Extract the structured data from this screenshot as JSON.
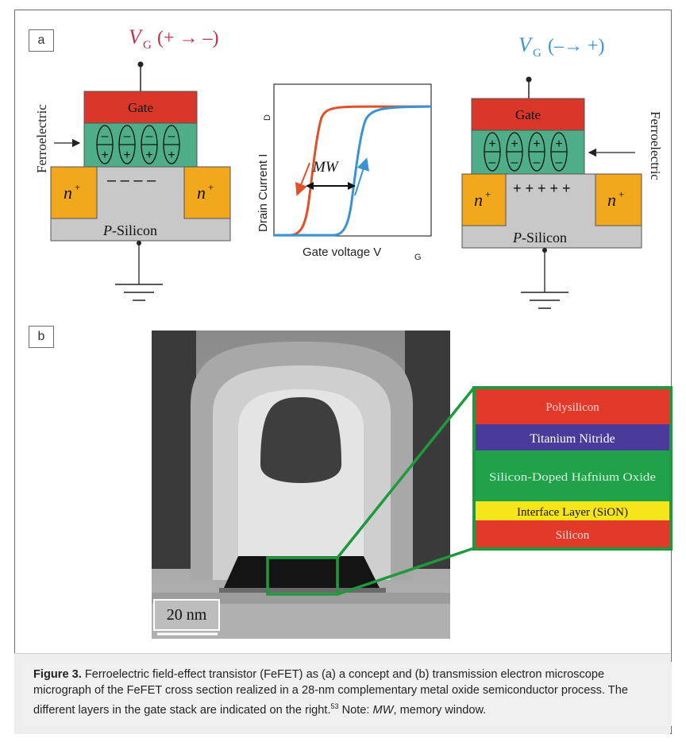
{
  "panel_a": {
    "label": "a",
    "left_device": {
      "vg_label": "(+ → –)",
      "vg_symbol": "V",
      "vg_sub": "G",
      "gate": "Gate",
      "ferroelectric": "Ferroelectric",
      "n_plus": "n",
      "n_sup": "+",
      "substrate_italic": "P",
      "substrate": "-Silicon",
      "charge_row": "–  –  –  –"
    },
    "graph": {
      "ylabel": "Drain Current I",
      "ylabel_sub": "D",
      "xlabel": "Gate voltage V",
      "xlabel_sub": "G",
      "mw": "MW"
    },
    "right_device": {
      "vg_label": "(–→ +)",
      "vg_symbol": "V",
      "vg_sub": "G",
      "gate": "Gate",
      "ferroelectric": "Ferroelectric",
      "n_plus": "n",
      "n_sup": "+",
      "substrate_italic": "P",
      "substrate": "-Silicon",
      "charge_row": "+  +  +  +  +"
    },
    "colors": {
      "gate": "#d8372a",
      "ferro": "#4fae8a",
      "n_region": "#f2a81c",
      "substrate": "#c8c8c8",
      "red_curve": "#e0512a",
      "blue_curve": "#3a93d4",
      "vg_left": "#c0304a",
      "vg_right": "#3a93d4"
    }
  },
  "panel_b": {
    "label": "b",
    "scale_bar": "20 nm",
    "layers": [
      {
        "name": "Polysilicon",
        "color": "#e2392b"
      },
      {
        "name": "Titanium Nitride",
        "color": "#4a3a9a"
      },
      {
        "name": "Silicon-Doped Hafnium Oxide",
        "color": "#20a24a"
      },
      {
        "name": "Interface Layer (SiON)",
        "color": "#f7e51c"
      },
      {
        "name": "Silicon",
        "color": "#e2392b"
      }
    ],
    "highlight_color": "#1e9a3c"
  },
  "caption": {
    "figure": "Figure 3.",
    "text": " Ferroelectric field-effect transistor (FeFET) as (a) a concept and (b) transmission electron microscope micrograph of the FeFET cross section realized in a 28-nm complementary metal oxide semiconductor process. The different layers in the gate stack are indicated on the right.",
    "ref": "53",
    "note_prefix": " Note: ",
    "note_italic": "MW",
    "note_suffix": ", memory window."
  }
}
